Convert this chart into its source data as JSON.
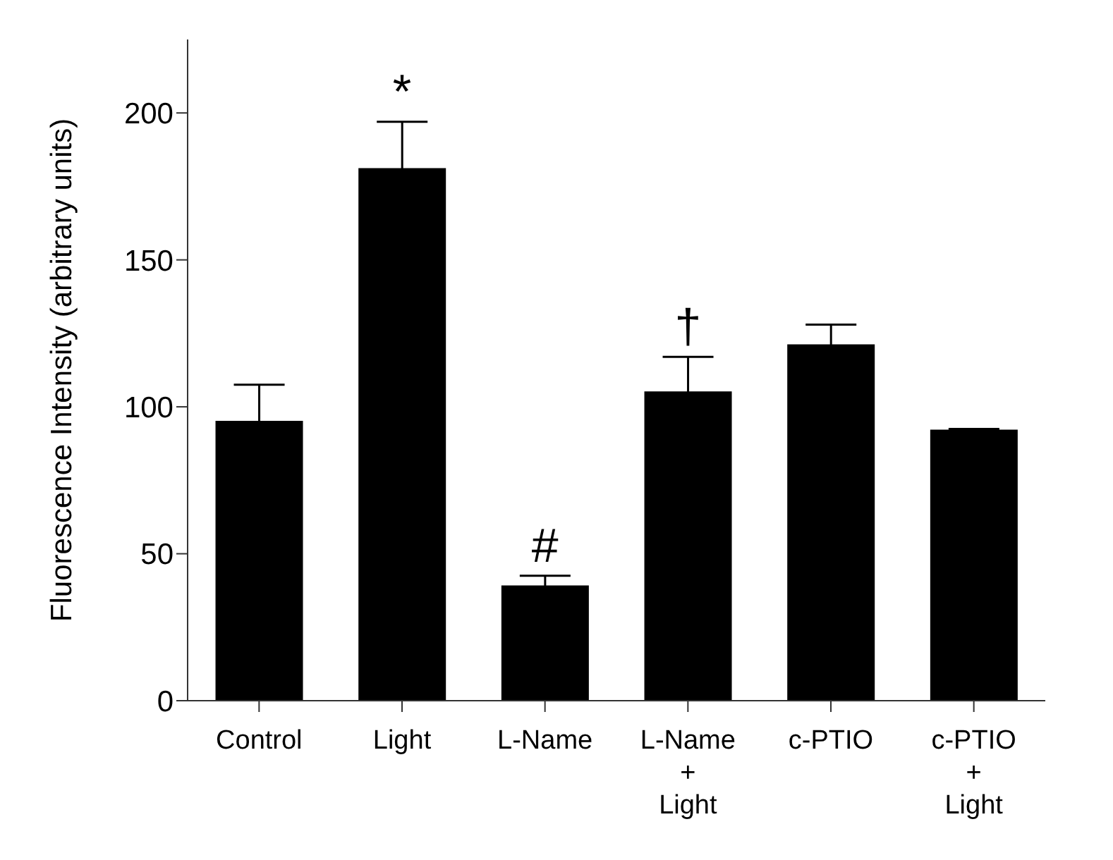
{
  "chart_data": {
    "type": "bar",
    "ylabel": "Fluorescence Intensity (arbitrary units)",
    "categories": [
      "Control",
      "Light",
      "L-Name",
      "L-Name\n+\nLight",
      "c-PTIO",
      "c-PTIO\n+\nLight"
    ],
    "values": [
      95,
      181,
      39,
      105,
      121,
      92
    ],
    "errors": [
      12.5,
      16,
      3.5,
      12,
      7,
      0.5
    ],
    "color": "#000000",
    "ylim": [
      0,
      225
    ],
    "yticks": [
      0,
      50,
      100,
      150,
      200
    ],
    "value_labels": [
      null,
      "*",
      "#",
      "†",
      null,
      null
    ],
    "grid": false,
    "legend": false
  }
}
